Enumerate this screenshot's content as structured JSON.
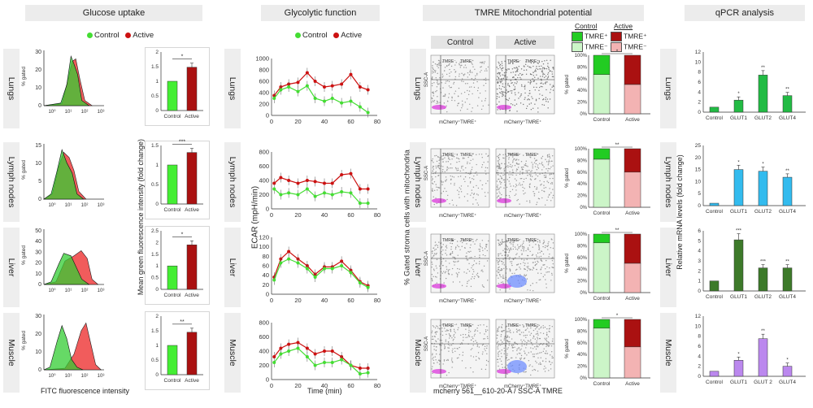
{
  "headers": {
    "glucose": "Glucose uptake",
    "glycolytic": "Glycolytic function",
    "tmre": "TMRE Mitochondrial potential",
    "qpcr": "qPCR analysis"
  },
  "legend": {
    "control": "Control",
    "active": "Active"
  },
  "rows": [
    "Lungs",
    "Lymph nodes",
    "Liver",
    "Muscle"
  ],
  "histogram": {
    "ylabel": "% gated",
    "xlabel": "FITC fluorescence intensity",
    "x_ticks": [
      "10⁰",
      "10¹",
      "10²",
      "10³"
    ],
    "y_ticks": [
      [
        "30",
        "20",
        "10",
        "0"
      ],
      [
        "15",
        "10",
        "5",
        "0"
      ],
      [
        "50",
        "40",
        "30",
        "20",
        "10",
        "0"
      ],
      [
        "30",
        "20",
        "10",
        "0"
      ]
    ]
  },
  "mfi": {
    "ylabel": "Mean green fluorescence intensity (fold change)",
    "categories": [
      "Control",
      "Active"
    ],
    "panels": [
      {
        "values": [
          1.0,
          1.48
        ],
        "ylim": [
          0,
          2
        ],
        "ticks": [
          "2",
          "1.5",
          "1",
          "0.5",
          "0"
        ],
        "sig": "*"
      },
      {
        "values": [
          1.0,
          1.32
        ],
        "ylim": [
          0,
          1.5
        ],
        "ticks": [
          "1.5",
          "1",
          "0.5",
          "0"
        ],
        "sig": "***"
      },
      {
        "values": [
          1.0,
          1.9
        ],
        "ylim": [
          0,
          2.5
        ],
        "ticks": [
          "2.5",
          "2",
          "1.5",
          "1",
          "0.5",
          "0"
        ],
        "sig": "*"
      },
      {
        "values": [
          1.0,
          1.45
        ],
        "ylim": [
          0,
          2
        ],
        "ticks": [
          "2",
          "1.5",
          "1",
          "0.5",
          "0"
        ],
        "sig": "**"
      }
    ]
  },
  "ecar": {
    "ylabel": "ECAR (mpH/min)",
    "xlabel": "Time (min)",
    "x_ticks": [
      "0",
      "20",
      "40",
      "60",
      "80"
    ],
    "y_ticks": [
      [
        "1000",
        "800",
        "600",
        "400",
        "200",
        "0"
      ],
      [
        "800",
        "600",
        "400",
        "200",
        "0"
      ],
      [
        "120",
        "100",
        "80",
        "60",
        "40",
        "20",
        "0"
      ],
      [
        "800",
        "600",
        "400",
        "200",
        "0"
      ]
    ]
  },
  "tmre": {
    "col_control": "Control",
    "col_active": "Active",
    "key_control_title": "Control",
    "key_active_title": "Active",
    "key_pos": "TMRE⁺",
    "key_neg": "TMRE⁻",
    "y_axis": "SSC-A",
    "gate_neg": "TMRE⁻",
    "gate_pos": "TMRE⁺",
    "x_axis": "mCherry⁺TMRE⁺",
    "plot_title": "mcherry 561__610-20-A / SSC-A ...",
    "bottom_label": "mcherry 561__610-20-A / SSC-A TMRE",
    "side_label": "% Gated stroma cells with mitochondria",
    "stack_ylabel": "% gated",
    "stack_ticks": [
      "100%",
      "80%",
      "60%",
      "40%",
      "20%",
      "0%"
    ],
    "stack_cats": [
      "Control",
      "Active"
    ],
    "stacks": [
      {
        "control_pos": 33,
        "active_pos": 50,
        "sig": "*"
      },
      {
        "control_pos": 18,
        "active_pos": 40,
        "sig": "**"
      },
      {
        "control_pos": 15,
        "active_pos": 50,
        "sig": "**"
      },
      {
        "control_pos": 15,
        "active_pos": 47,
        "sig": "*"
      }
    ]
  },
  "qpcr": {
    "ylabel": "Relative mRNA levels (fold change)",
    "colors": [
      "#22bb44",
      "#33bbee",
      "#3d7a2a",
      "#bb88ee"
    ],
    "panels": [
      {
        "categories": [
          "Control",
          "GLUT1",
          "GLUT2",
          "GLUT4"
        ],
        "values": [
          1.0,
          2.4,
          7.4,
          3.3
        ],
        "ymax": 12,
        "ticks": [
          "12",
          "10",
          "8",
          "6",
          "4",
          "2",
          "0"
        ],
        "sig": [
          "",
          "*",
          "**",
          "**"
        ]
      },
      {
        "categories": [
          "Control",
          "GLUT1",
          "GLUT2",
          "GLUT4"
        ],
        "values": [
          1.0,
          15.0,
          14.3,
          11.8
        ],
        "ymax": 25,
        "ticks": [
          "25",
          "20",
          "15",
          "10",
          "5",
          "0"
        ],
        "sig": [
          "",
          "*",
          "*",
          "**"
        ]
      },
      {
        "categories": [
          "Control",
          "GLUT1",
          "GLUT2",
          "GLUT4"
        ],
        "values": [
          1.0,
          5.1,
          2.3,
          2.3
        ],
        "ymax": 6,
        "ticks": [
          "6",
          "5",
          "4",
          "3",
          "2",
          "1",
          "0"
        ],
        "sig": [
          "",
          "***",
          "***",
          "**"
        ]
      },
      {
        "categories": [
          "Control",
          "GLUT1",
          "GLUT 2",
          "GLUT4"
        ],
        "values": [
          1.0,
          3.2,
          7.5,
          2.0
        ],
        "ymax": 12,
        "ticks": [
          "12",
          "10",
          "8",
          "6",
          "4",
          "2",
          "0"
        ],
        "sig": [
          "",
          "*",
          "**",
          "*"
        ]
      }
    ]
  },
  "chart_data": [
    {
      "type": "bar",
      "categories": [
        "Control",
        "Active"
      ],
      "series": [
        {
          "name": "Lungs",
          "values": [
            1.0,
            1.48
          ]
        },
        {
          "name": "Lymph nodes",
          "values": [
            1.0,
            1.32
          ]
        },
        {
          "name": "Liver",
          "values": [
            1.0,
            1.9
          ]
        },
        {
          "name": "Muscle",
          "values": [
            1.0,
            1.45
          ]
        }
      ],
      "ylabel": "Mean green fluorescence intensity (fold change)"
    },
    {
      "type": "bar",
      "categories": [
        "Control",
        "GLUT1",
        "GLUT2",
        "GLUT4"
      ],
      "series": [
        {
          "name": "Lungs",
          "values": [
            1.0,
            2.4,
            7.4,
            3.3
          ]
        },
        {
          "name": "Lymph nodes",
          "values": [
            1.0,
            15.0,
            14.3,
            11.8
          ]
        },
        {
          "name": "Liver",
          "values": [
            1.0,
            5.1,
            2.3,
            2.3
          ]
        },
        {
          "name": "Muscle",
          "values": [
            1.0,
            3.2,
            7.5,
            2.0
          ]
        }
      ],
      "ylabel": "Relative mRNA levels (fold change)"
    }
  ]
}
